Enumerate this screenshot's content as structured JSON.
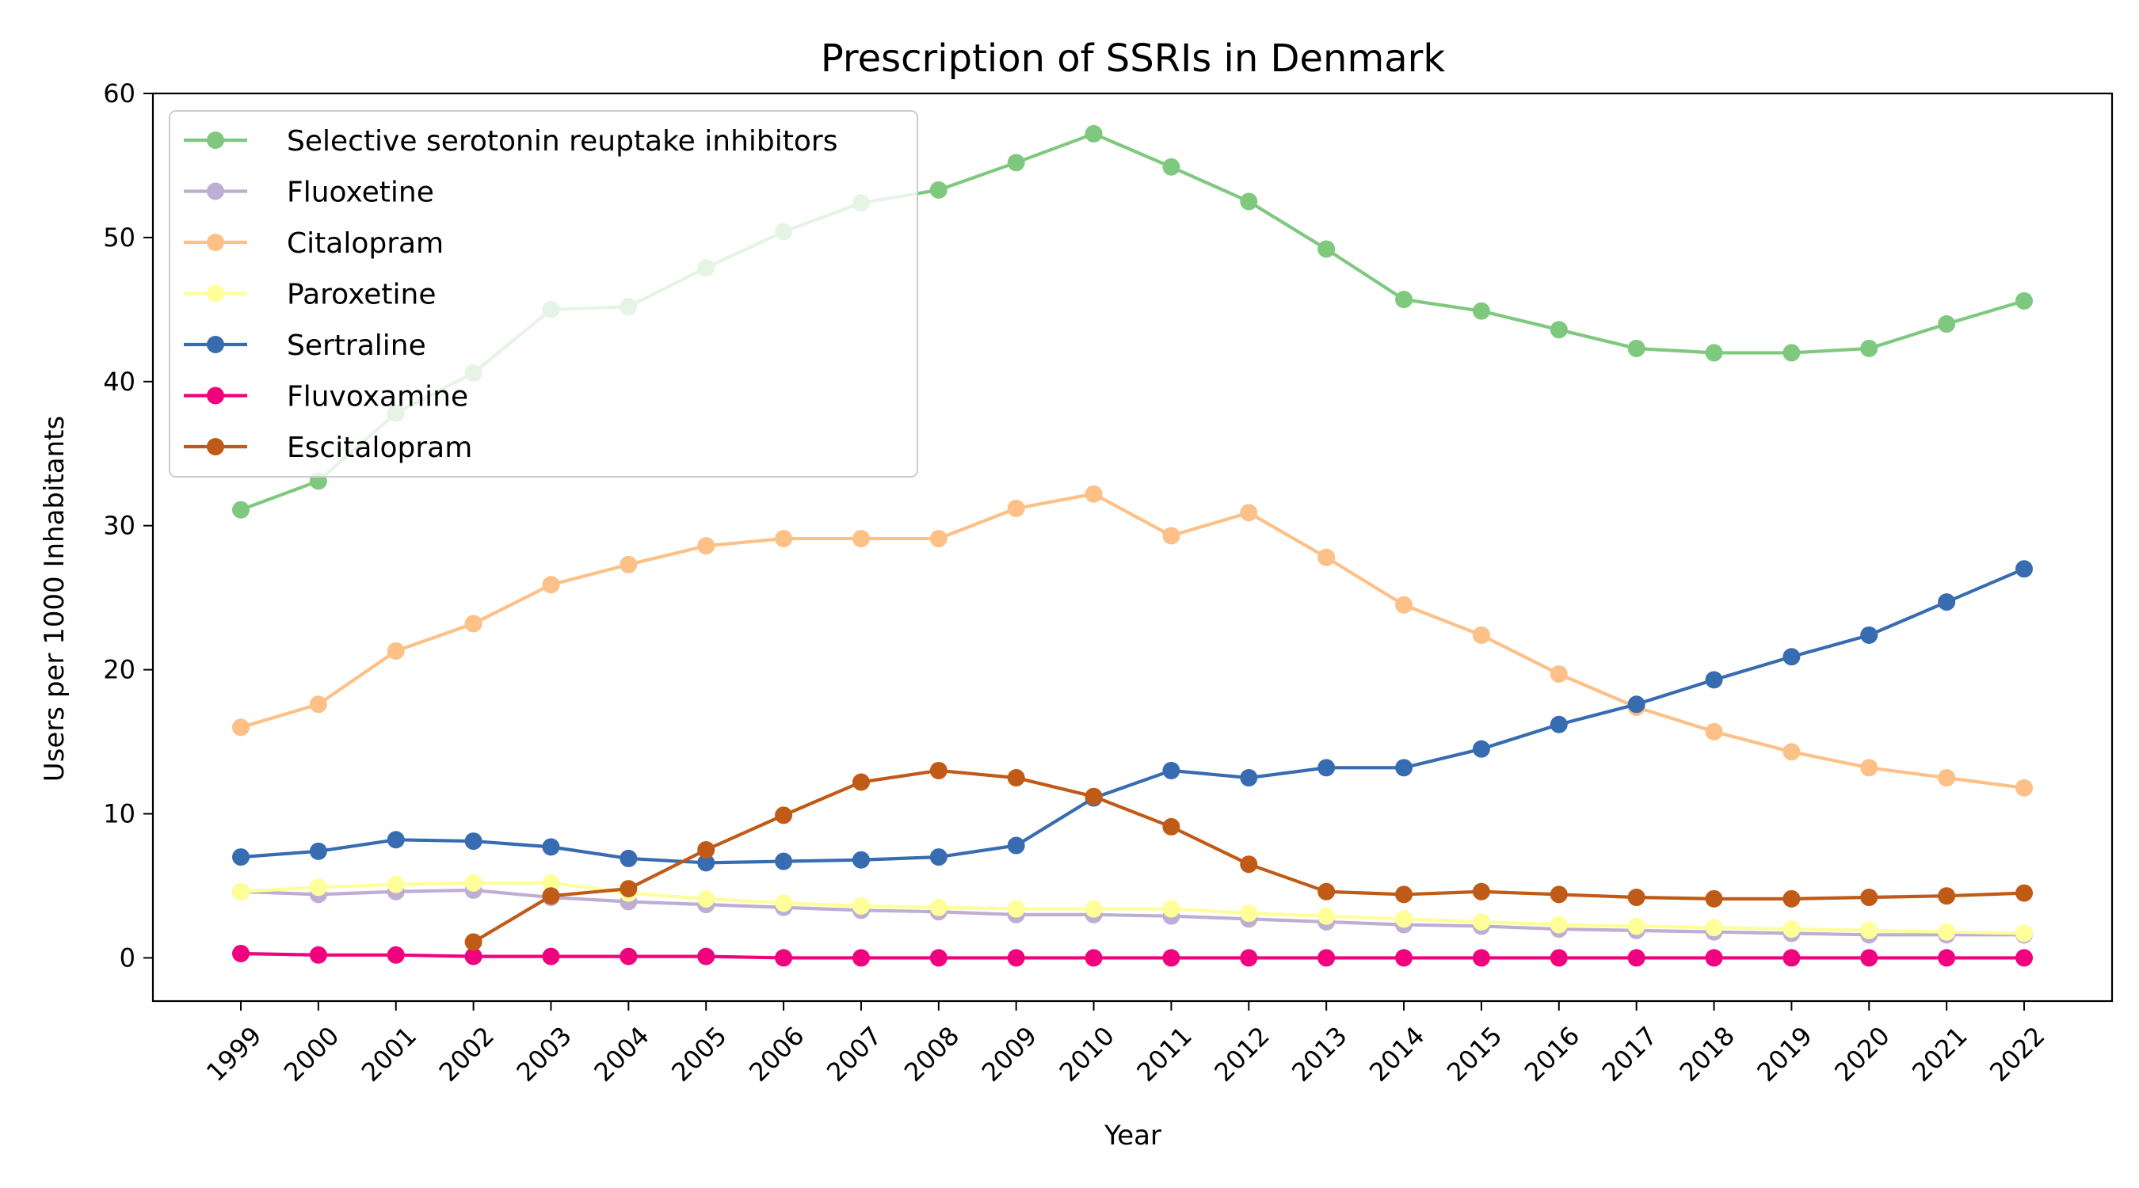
{
  "chart_data": {
    "type": "line",
    "title": "Prescription of SSRIs in Denmark",
    "xlabel": "Year",
    "ylabel": "Users per 1000 Inhabitants",
    "ylim": [
      -3,
      60
    ],
    "yticks": [
      0,
      10,
      20,
      30,
      40,
      50,
      60
    ],
    "grid": false,
    "legend_position": "upper-left",
    "categories": [
      "1999",
      "2000",
      "2001",
      "2002",
      "2003",
      "2004",
      "2005",
      "2006",
      "2007",
      "2008",
      "2009",
      "2010",
      "2011",
      "2012",
      "2013",
      "2014",
      "2015",
      "2016",
      "2017",
      "2018",
      "2019",
      "2020",
      "2021",
      "2022"
    ],
    "series": [
      {
        "name": "Selective serotonin reuptake inhibitors",
        "color": "#7fc97f",
        "values": [
          31.1,
          33.1,
          37.8,
          40.6,
          45.0,
          45.2,
          47.9,
          50.4,
          52.4,
          53.3,
          55.2,
          57.2,
          54.9,
          52.5,
          49.2,
          45.7,
          44.9,
          43.6,
          42.3,
          42.0,
          42.0,
          42.3,
          44.0,
          45.6
        ]
      },
      {
        "name": "Fluoxetine",
        "color": "#beaed4",
        "values": [
          4.6,
          4.4,
          4.6,
          4.7,
          4.2,
          3.9,
          3.7,
          3.5,
          3.3,
          3.2,
          3.0,
          3.0,
          2.9,
          2.7,
          2.5,
          2.3,
          2.2,
          2.0,
          1.9,
          1.8,
          1.7,
          1.6,
          1.6,
          1.6
        ]
      },
      {
        "name": "Citalopram",
        "color": "#fdc086",
        "values": [
          16.0,
          17.6,
          21.3,
          23.2,
          25.9,
          27.3,
          28.6,
          29.1,
          29.1,
          29.1,
          31.2,
          32.2,
          29.3,
          30.9,
          27.8,
          24.5,
          22.4,
          19.7,
          17.4,
          15.7,
          14.3,
          13.2,
          12.5,
          11.8
        ]
      },
      {
        "name": "Paroxetine",
        "color": "#ffff99",
        "values": [
          4.6,
          4.9,
          5.1,
          5.2,
          5.2,
          4.5,
          4.1,
          3.8,
          3.6,
          3.5,
          3.4,
          3.4,
          3.4,
          3.1,
          2.9,
          2.7,
          2.5,
          2.3,
          2.2,
          2.1,
          2.0,
          1.9,
          1.8,
          1.7
        ]
      },
      {
        "name": "Sertraline",
        "color": "#386cb0",
        "values": [
          7.0,
          7.4,
          8.2,
          8.1,
          7.7,
          6.9,
          6.6,
          6.7,
          6.8,
          7.0,
          7.8,
          11.1,
          13.0,
          12.5,
          13.2,
          13.2,
          14.5,
          16.2,
          17.6,
          19.3,
          20.9,
          22.4,
          24.7,
          27.0
        ]
      },
      {
        "name": "Fluvoxamine",
        "color": "#f0027f",
        "values": [
          0.3,
          0.2,
          0.2,
          0.1,
          0.1,
          0.1,
          0.1,
          0.0,
          0.0,
          0.0,
          0.0,
          0.0,
          0.0,
          0.0,
          0.0,
          0.0,
          0.0,
          0.0,
          0.0,
          0.0,
          0.0,
          0.0,
          0.0,
          0.0
        ]
      },
      {
        "name": "Escitalopram",
        "color": "#bf5b17",
        "values": [
          null,
          null,
          null,
          1.1,
          4.3,
          4.8,
          7.5,
          9.9,
          12.2,
          13.0,
          12.5,
          11.2,
          9.1,
          6.5,
          4.6,
          4.4,
          4.6,
          4.4,
          4.2,
          4.1,
          4.1,
          4.2,
          4.3,
          4.5
        ]
      }
    ]
  }
}
